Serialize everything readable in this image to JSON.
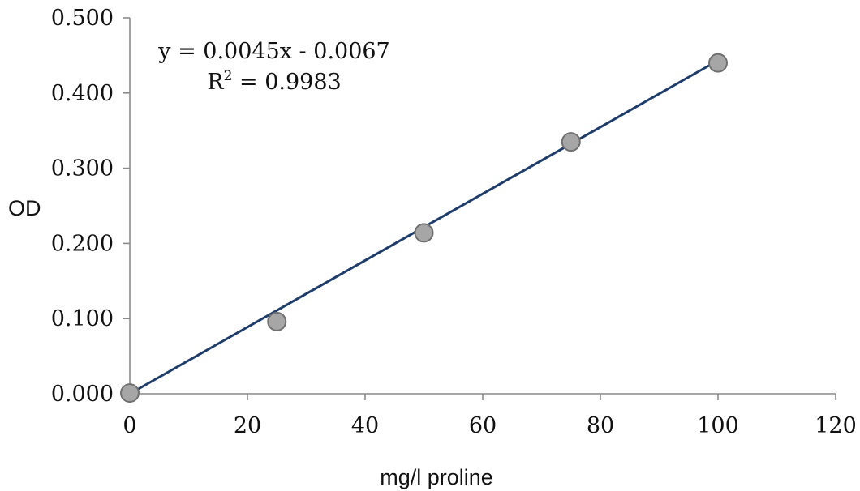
{
  "chart_data": {
    "type": "scatter",
    "title": "",
    "xlabel": "mg/l proline",
    "ylabel": "OD",
    "xlim": [
      0,
      120
    ],
    "ylim": [
      0,
      0.5
    ],
    "x_ticks": [
      "0",
      "20",
      "40",
      "60",
      "80",
      "100",
      "120"
    ],
    "y_ticks": [
      "0.000",
      "0.100",
      "0.200",
      "0.300",
      "0.400",
      "0.500"
    ],
    "grid": false,
    "legend": "none",
    "series": [
      {
        "x": [
          0,
          25,
          50,
          75,
          100
        ],
        "y": [
          0.001,
          0.096,
          0.214,
          0.335,
          0.44
        ],
        "marker_color": "#a6a6a6",
        "marker_edge": "#707070"
      }
    ],
    "trendline": {
      "slope": 0.0045,
      "intercept": -0.0067,
      "x_range": [
        0,
        100
      ],
      "color": "#1f3d6b"
    },
    "annotations": {
      "equation": "y = 0.0045x - 0.0067",
      "r2_prefix": "R",
      "r2_sup": "2",
      "r2_value": " = 0.9983"
    }
  }
}
